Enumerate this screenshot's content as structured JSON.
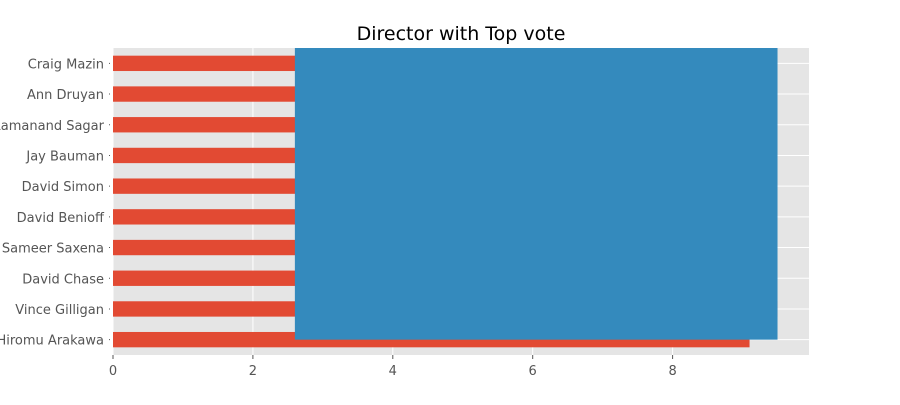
{
  "chart_data": {
    "type": "bar",
    "orientation": "horizontal",
    "title": "Director with Top vote",
    "xlabel": "",
    "ylabel": "",
    "categories": [
      "Craig Mazin",
      "Ann Druyan",
      "Ramanand Sagar",
      "Jay Bauman",
      "David Simon",
      "David Benioff",
      "Sameer Saxena",
      "David Chase",
      "Vince Gilligan",
      "Hiromu Arakawa"
    ],
    "series": [
      {
        "values": [
          9.4,
          9.3,
          9.3,
          9.3,
          9.3,
          9.2,
          9.2,
          9.2,
          9.5,
          9.1
        ]
      }
    ],
    "overlay_rect": {
      "x_from": 2.6,
      "x_to": 9.5
    },
    "xlim": [
      0,
      9.95
    ],
    "xticks": [
      0,
      2,
      4,
      6,
      8
    ],
    "grid": true,
    "colors": {
      "bar": "#e24a33",
      "overlay": "#348abd",
      "axes_background": "#e5e5e5",
      "grid": "#ffffff",
      "tick_label": "#555555",
      "title": "#000000"
    }
  }
}
